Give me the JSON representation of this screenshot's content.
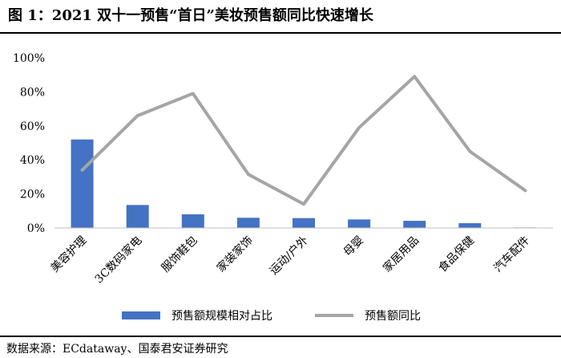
{
  "title": "图 1：2021 双十一预售“首日”美妆预售额同比快速增长",
  "source": "数据来源：ECdataway、国泰君安证券研究",
  "colors": {
    "bar": "#4472C4",
    "line": "#A5A5A5"
  },
  "chart_data": {
    "type": "bar",
    "categories": [
      "美容护理",
      "3C数码家电",
      "服饰鞋包",
      "家装家饰",
      "运动/户外",
      "母婴",
      "家居用品",
      "食品保健",
      "汽车配件"
    ],
    "series": [
      {
        "name": "预售额规模相对占比",
        "type": "bar",
        "values": [
          52,
          13.5,
          8,
          6,
          5.8,
          5,
          4.2,
          2.8,
          0.3
        ]
      },
      {
        "name": "预售额同比",
        "type": "line",
        "values": [
          34,
          66,
          79,
          31.5,
          14,
          59,
          89,
          45,
          22
        ]
      }
    ],
    "y_ticks": [
      "0%",
      "20%",
      "40%",
      "60%",
      "80%",
      "100%"
    ],
    "ylim": [
      0,
      100
    ],
    "legend": "bottom"
  }
}
